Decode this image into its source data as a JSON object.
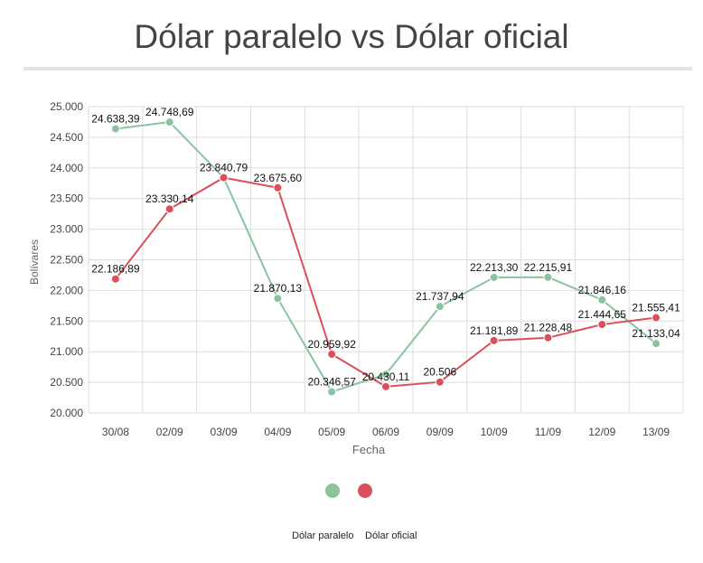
{
  "chart_data": {
    "type": "line",
    "title": "Dólar paralelo vs Dólar oficial",
    "xlabel": "Fecha",
    "ylabel": "Bolívares",
    "categories": [
      "30/08",
      "02/09",
      "03/09",
      "04/09",
      "05/09",
      "06/09",
      "09/09",
      "10/09",
      "11/09",
      "12/09",
      "13/09"
    ],
    "ylim": [
      20000,
      25000
    ],
    "yticks": [
      {
        "value": 20000,
        "label": "20.000"
      },
      {
        "value": 20500,
        "label": "20.500"
      },
      {
        "value": 21000,
        "label": "21.000"
      },
      {
        "value": 21500,
        "label": "21.500"
      },
      {
        "value": 22000,
        "label": "22.000"
      },
      {
        "value": 22500,
        "label": "22.500"
      },
      {
        "value": 23000,
        "label": "23.000"
      },
      {
        "value": 23500,
        "label": "23.500"
      },
      {
        "value": 24000,
        "label": "24.000"
      },
      {
        "value": 24500,
        "label": "24.500"
      },
      {
        "value": 25000,
        "label": "25.000"
      }
    ],
    "grid": true,
    "legend_position": "bottom",
    "series": [
      {
        "name": "Dólar paralelo",
        "color": "#8bc3a0",
        "values": [
          24638.39,
          24748.69,
          23840.79,
          21870.13,
          20346.57,
          20630,
          21737.94,
          22213.3,
          22215.91,
          21846.16,
          21133.04
        ],
        "labels": [
          "24.638,39",
          "24.748,69",
          "",
          "21.870,13",
          "20.346,57",
          "",
          "21.737,94",
          "22.213,30",
          "22.215,91",
          "21.846,16",
          "21.133,04"
        ]
      },
      {
        "name": "Dólar oficial",
        "color": "#d9505a",
        "values": [
          22186.89,
          23330.14,
          23840.79,
          23675.6,
          20959.92,
          20430.11,
          20506,
          21181.89,
          21228.48,
          21444.65,
          21555.41
        ],
        "labels": [
          "22.186,89",
          "23.330,14",
          "23.840,79",
          "23.675,60",
          "20.959,92",
          "20.430,11",
          "20.506",
          "21.181,89",
          "21.228,48",
          "21.444,65",
          "21.555,41"
        ]
      }
    ]
  }
}
